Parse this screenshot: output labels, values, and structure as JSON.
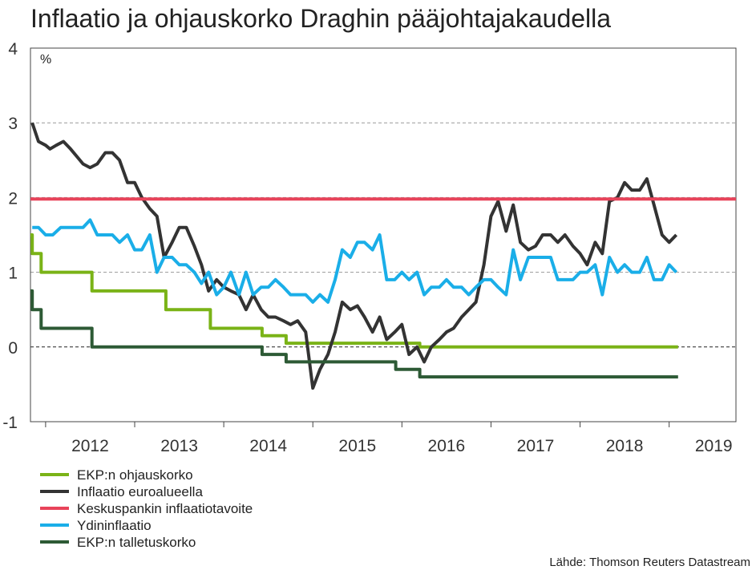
{
  "chart_data": {
    "type": "line",
    "title": "Inflaatio ja ohjauskorko Draghin pääjohtajakaudella",
    "unit_label": "%",
    "source": "Lähde: Thomson Reuters Datastream",
    "ylim": [
      -1,
      4
    ],
    "yticks": [
      "4",
      "3",
      "2",
      "1",
      "0",
      "-1"
    ],
    "ytick_values": [
      4,
      3,
      2,
      1,
      0,
      -1
    ],
    "xlim": [
      2011.83,
      2019.75
    ],
    "xticks": [
      "2012",
      "2013",
      "2014",
      "2015",
      "2016",
      "2017",
      "2018",
      "2019"
    ],
    "xtick_centers": [
      2012.5,
      2013.5,
      2014.5,
      2015.5,
      2016.5,
      2017.5,
      2018.5,
      2019.5
    ],
    "year_boundaries": [
      2012,
      2013,
      2014,
      2015,
      2016,
      2017,
      2018,
      2019
    ],
    "grid": true,
    "legend_position": "bottom-left",
    "series": [
      {
        "name": "EKP:n ohjauskorko",
        "color": "#7ab317",
        "step": true,
        "points": [
          [
            2011.83,
            1.5
          ],
          [
            2011.85,
            1.25
          ],
          [
            2011.95,
            1.0
          ],
          [
            2012.52,
            0.75
          ],
          [
            2013.35,
            0.5
          ],
          [
            2013.85,
            0.25
          ],
          [
            2014.43,
            0.15
          ],
          [
            2014.7,
            0.05
          ],
          [
            2016.2,
            0.0
          ],
          [
            2019.1,
            0.0
          ]
        ]
      },
      {
        "name": "Inflaatio euroalueella",
        "color": "#333333",
        "points": [
          [
            2011.85,
            3.0
          ],
          [
            2011.92,
            2.75
          ],
          [
            2012.0,
            2.7
          ],
          [
            2012.05,
            2.65
          ],
          [
            2012.12,
            2.7
          ],
          [
            2012.2,
            2.75
          ],
          [
            2012.28,
            2.65
          ],
          [
            2012.35,
            2.55
          ],
          [
            2012.42,
            2.45
          ],
          [
            2012.5,
            2.4
          ],
          [
            2012.58,
            2.45
          ],
          [
            2012.67,
            2.6
          ],
          [
            2012.75,
            2.6
          ],
          [
            2012.83,
            2.5
          ],
          [
            2012.92,
            2.2
          ],
          [
            2013.0,
            2.2
          ],
          [
            2013.08,
            2.0
          ],
          [
            2013.17,
            1.85
          ],
          [
            2013.25,
            1.75
          ],
          [
            2013.33,
            1.2
          ],
          [
            2013.42,
            1.4
          ],
          [
            2013.5,
            1.6
          ],
          [
            2013.58,
            1.6
          ],
          [
            2013.67,
            1.35
          ],
          [
            2013.75,
            1.1
          ],
          [
            2013.83,
            0.75
          ],
          [
            2013.92,
            0.9
          ],
          [
            2014.0,
            0.8
          ],
          [
            2014.08,
            0.75
          ],
          [
            2014.17,
            0.7
          ],
          [
            2014.25,
            0.5
          ],
          [
            2014.33,
            0.7
          ],
          [
            2014.42,
            0.5
          ],
          [
            2014.5,
            0.4
          ],
          [
            2014.58,
            0.4
          ],
          [
            2014.67,
            0.35
          ],
          [
            2014.75,
            0.3
          ],
          [
            2014.83,
            0.35
          ],
          [
            2014.92,
            0.2
          ],
          [
            2015.0,
            -0.55
          ],
          [
            2015.08,
            -0.3
          ],
          [
            2015.17,
            -0.1
          ],
          [
            2015.25,
            0.2
          ],
          [
            2015.33,
            0.6
          ],
          [
            2015.42,
            0.5
          ],
          [
            2015.5,
            0.55
          ],
          [
            2015.58,
            0.4
          ],
          [
            2015.67,
            0.2
          ],
          [
            2015.75,
            0.4
          ],
          [
            2015.83,
            0.1
          ],
          [
            2015.92,
            0.2
          ],
          [
            2016.0,
            0.3
          ],
          [
            2016.08,
            -0.1
          ],
          [
            2016.17,
            0.0
          ],
          [
            2016.25,
            -0.2
          ],
          [
            2016.33,
            0.0
          ],
          [
            2016.42,
            0.1
          ],
          [
            2016.5,
            0.2
          ],
          [
            2016.58,
            0.25
          ],
          [
            2016.67,
            0.4
          ],
          [
            2016.75,
            0.5
          ],
          [
            2016.83,
            0.6
          ],
          [
            2016.92,
            1.1
          ],
          [
            2017.0,
            1.75
          ],
          [
            2017.08,
            1.95
          ],
          [
            2017.17,
            1.55
          ],
          [
            2017.25,
            1.9
          ],
          [
            2017.33,
            1.4
          ],
          [
            2017.42,
            1.3
          ],
          [
            2017.5,
            1.35
          ],
          [
            2017.58,
            1.5
          ],
          [
            2017.67,
            1.5
          ],
          [
            2017.75,
            1.4
          ],
          [
            2017.83,
            1.5
          ],
          [
            2017.92,
            1.35
          ],
          [
            2018.0,
            1.25
          ],
          [
            2018.08,
            1.1
          ],
          [
            2018.17,
            1.4
          ],
          [
            2018.25,
            1.25
          ],
          [
            2018.33,
            1.95
          ],
          [
            2018.42,
            2.0
          ],
          [
            2018.5,
            2.2
          ],
          [
            2018.58,
            2.1
          ],
          [
            2018.67,
            2.1
          ],
          [
            2018.75,
            2.25
          ],
          [
            2018.83,
            1.9
          ],
          [
            2018.92,
            1.5
          ],
          [
            2019.0,
            1.4
          ],
          [
            2019.08,
            1.5
          ]
        ]
      },
      {
        "name": "Keskuspankin inflaatiotavoite",
        "color": "#e8435a",
        "points": [
          [
            2011.83,
            1.98
          ],
          [
            2019.75,
            1.98
          ]
        ]
      },
      {
        "name": "Ydininflaatio",
        "color": "#1aaee8",
        "points": [
          [
            2011.85,
            1.6
          ],
          [
            2011.92,
            1.6
          ],
          [
            2012.0,
            1.5
          ],
          [
            2012.08,
            1.5
          ],
          [
            2012.17,
            1.6
          ],
          [
            2012.25,
            1.6
          ],
          [
            2012.33,
            1.6
          ],
          [
            2012.42,
            1.6
          ],
          [
            2012.5,
            1.7
          ],
          [
            2012.58,
            1.5
          ],
          [
            2012.67,
            1.5
          ],
          [
            2012.75,
            1.5
          ],
          [
            2012.83,
            1.4
          ],
          [
            2012.92,
            1.5
          ],
          [
            2013.0,
            1.3
          ],
          [
            2013.08,
            1.3
          ],
          [
            2013.17,
            1.5
          ],
          [
            2013.25,
            1.0
          ],
          [
            2013.33,
            1.2
          ],
          [
            2013.42,
            1.2
          ],
          [
            2013.5,
            1.1
          ],
          [
            2013.58,
            1.1
          ],
          [
            2013.67,
            1.0
          ],
          [
            2013.75,
            0.85
          ],
          [
            2013.83,
            1.0
          ],
          [
            2013.92,
            0.7
          ],
          [
            2014.0,
            0.8
          ],
          [
            2014.08,
            1.0
          ],
          [
            2014.17,
            0.7
          ],
          [
            2014.25,
            1.0
          ],
          [
            2014.33,
            0.7
          ],
          [
            2014.42,
            0.8
          ],
          [
            2014.5,
            0.8
          ],
          [
            2014.58,
            0.9
          ],
          [
            2014.67,
            0.8
          ],
          [
            2014.75,
            0.7
          ],
          [
            2014.83,
            0.7
          ],
          [
            2014.92,
            0.7
          ],
          [
            2015.0,
            0.6
          ],
          [
            2015.08,
            0.7
          ],
          [
            2015.17,
            0.6
          ],
          [
            2015.25,
            0.9
          ],
          [
            2015.33,
            1.3
          ],
          [
            2015.42,
            1.2
          ],
          [
            2015.5,
            1.4
          ],
          [
            2015.58,
            1.4
          ],
          [
            2015.67,
            1.3
          ],
          [
            2015.75,
            1.5
          ],
          [
            2015.83,
            0.9
          ],
          [
            2015.92,
            0.9
          ],
          [
            2016.0,
            1.0
          ],
          [
            2016.08,
            0.9
          ],
          [
            2016.17,
            1.0
          ],
          [
            2016.25,
            0.7
          ],
          [
            2016.33,
            0.8
          ],
          [
            2016.42,
            0.8
          ],
          [
            2016.5,
            0.9
          ],
          [
            2016.58,
            0.8
          ],
          [
            2016.67,
            0.8
          ],
          [
            2016.75,
            0.7
          ],
          [
            2016.83,
            0.8
          ],
          [
            2016.92,
            0.9
          ],
          [
            2017.0,
            0.9
          ],
          [
            2017.08,
            0.8
          ],
          [
            2017.17,
            0.7
          ],
          [
            2017.25,
            1.3
          ],
          [
            2017.33,
            0.9
          ],
          [
            2017.42,
            1.2
          ],
          [
            2017.5,
            1.2
          ],
          [
            2017.58,
            1.2
          ],
          [
            2017.67,
            1.2
          ],
          [
            2017.75,
            0.9
          ],
          [
            2017.83,
            0.9
          ],
          [
            2017.92,
            0.9
          ],
          [
            2018.0,
            1.0
          ],
          [
            2018.08,
            1.0
          ],
          [
            2018.17,
            1.1
          ],
          [
            2018.25,
            0.7
          ],
          [
            2018.33,
            1.2
          ],
          [
            2018.42,
            1.0
          ],
          [
            2018.5,
            1.1
          ],
          [
            2018.58,
            1.0
          ],
          [
            2018.67,
            1.0
          ],
          [
            2018.75,
            1.2
          ],
          [
            2018.83,
            0.9
          ],
          [
            2018.92,
            0.9
          ],
          [
            2019.0,
            1.1
          ],
          [
            2019.08,
            1.0
          ]
        ]
      },
      {
        "name": "EKP:n talletuskorko",
        "color": "#2d5a35",
        "step": true,
        "points": [
          [
            2011.83,
            0.75
          ],
          [
            2011.85,
            0.5
          ],
          [
            2011.95,
            0.25
          ],
          [
            2012.52,
            0.0
          ],
          [
            2014.43,
            -0.1
          ],
          [
            2014.7,
            -0.2
          ],
          [
            2015.93,
            -0.3
          ],
          [
            2016.2,
            -0.4
          ],
          [
            2019.1,
            -0.4
          ]
        ]
      }
    ]
  }
}
